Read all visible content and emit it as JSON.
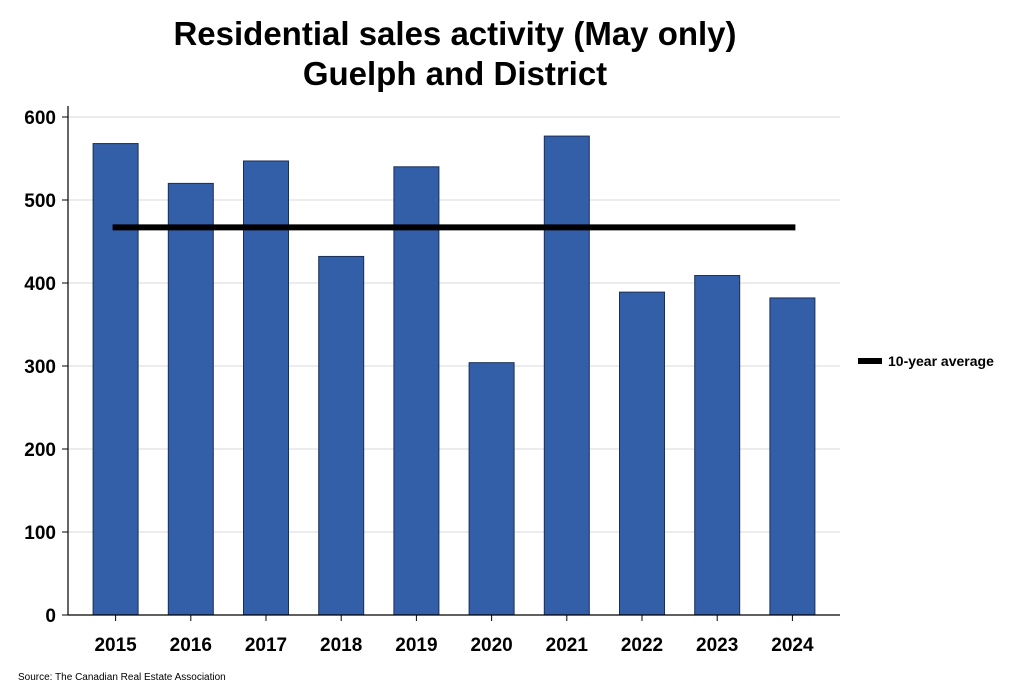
{
  "chart_data": {
    "type": "bar",
    "title_line1": "Residential sales activity (May only)",
    "title_line2": "Guelph and District",
    "categories": [
      "2015",
      "2016",
      "2017",
      "2018",
      "2019",
      "2020",
      "2021",
      "2022",
      "2023",
      "2024"
    ],
    "values": [
      568,
      520,
      547,
      432,
      540,
      304,
      577,
      389,
      409,
      382
    ],
    "average": 467,
    "ylim": [
      0,
      600
    ],
    "yticks": [
      0,
      100,
      200,
      300,
      400,
      500,
      600
    ],
    "grid": true,
    "legend": [
      {
        "label": "10-year average",
        "type": "line"
      }
    ],
    "legend_position": "right",
    "bar_color": "#335ea8",
    "average_color": "#000000",
    "source": "Source: The Canadian Real Estate Association"
  }
}
